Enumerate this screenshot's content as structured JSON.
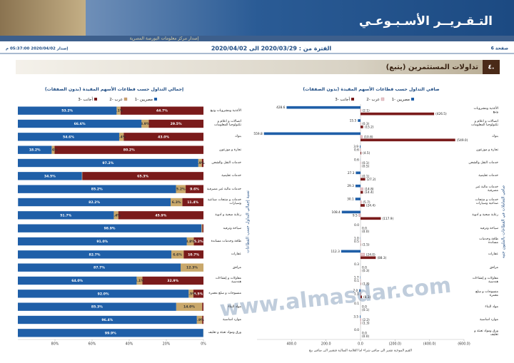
{
  "header": {
    "title": "التـقـريــر الأسـبـوعـي",
    "subtitle": "إصدار مركز معلومات البورصة المصرية",
    "page": "صفحة 6",
    "period": "الفترة من : 2020/03/29 الى 2020/04/02",
    "issued": "إصدار 2020/04/02 05:37:00 م"
  },
  "section": {
    "number": "٤.",
    "title": "تداولات المستثمرين (يتبع)"
  },
  "watermark": "www.almasdar.com",
  "chart_data": [
    {
      "type": "stacked_bar_h",
      "title": "إجمالي التداول حسب قطاعات الأسهم المقيدة (بدون الصفقات)",
      "ylabel": "نسبة إجمالي التداول حسب القطاعات",
      "categories": [
        "الأغذية ومشروبات وتبغ",
        "اتصالات و اعلام و تكنولوجيا المعلومات",
        "بنوك",
        "تجارة و موزعون",
        "خدمات النقل والشحن",
        "خدمات تعليمية",
        "خدمات مالية غير مصرفية",
        "خدمات و منتجات صناعية وسيارات",
        "رعاية صحية و ادوية",
        "سياحة وترفيه",
        "طاقة وخدمات مساندة",
        "عقارات",
        "مرافق",
        "مقاولات و إنشاءات هندسية",
        "منسوجات و سلع معمرة",
        "مواد البناء",
        "موارد اساسية",
        "ورق ومواد تعبئة و تغليف"
      ],
      "series": [
        {
          "name": "مصريين -1",
          "color": "#1f5fa8",
          "values": [
            53.2,
            66.6,
            54.6,
            18.2,
            97.2,
            34.5,
            85.2,
            82.2,
            51.7,
            98.9,
            91.0,
            82.7,
            87.7,
            64.0,
            92.0,
            85.3,
            96.4,
            99.9
          ],
          "value_labels": [
            "53.2%",
            "66.6%",
            "54.6%",
            "18.2%",
            "97.2%",
            "34.5%",
            "85.2%",
            "82.2%",
            "51.7%",
            "98.9%",
            "91.0%",
            "82.7%",
            "87.7%",
            "64.0%",
            "92.0%",
            "85.3%",
            "96.4%",
            "99.9%"
          ]
        },
        {
          "name": "عرب -2",
          "color": "#c9a86b",
          "values": [
            2.1,
            3.9,
            2.4,
            1.6,
            1.9,
            0.2,
            5.2,
            6.3,
            2.4,
            0.5,
            3.8,
            6.6,
            12.3,
            3.1,
            2.5,
            14.0,
            2.9,
            0.1
          ],
          "value_labels": [
            "2.1%",
            "3.9%",
            "2.4%",
            "1.6%",
            "1.9%",
            "0.2%",
            "5.2%",
            "6.3%",
            "2.4%",
            "0.5%",
            "3.8%",
            "6.6%",
            "12.3%",
            "3.1%",
            "2.5%",
            "14.0%",
            "2.9%",
            "0.1%"
          ]
        },
        {
          "name": "أجانب -3",
          "color": "#7a1b1b",
          "values": [
            44.7,
            29.5,
            43.0,
            80.2,
            0.9,
            65.3,
            9.6,
            11.4,
            45.9,
            0.6,
            5.2,
            10.7,
            0.0,
            32.9,
            5.5,
            0.7,
            0.7,
            0.0
          ],
          "value_labels": [
            "44.7%",
            "29.5%",
            "43.0%",
            "80.2%",
            "0.9%",
            "65.3%",
            "9.6%",
            "11.4%",
            "45.9%",
            "0.6%",
            "5.2%",
            "10.7%",
            "0.0%",
            "32.9%",
            "5.5%",
            "0.7%",
            "0.7%",
            "0.0%"
          ]
        }
      ],
      "xlim": [
        100,
        0
      ],
      "xticks": [
        {
          "value": 80,
          "label": "80%"
        },
        {
          "value": 60,
          "label": "60%"
        },
        {
          "value": 40,
          "label": "40%"
        },
        {
          "value": 20,
          "label": "20%"
        },
        {
          "value": 0,
          "label": "0%"
        }
      ]
    },
    {
      "type": "grouped_bar_h",
      "title": "صافي التداول حسب قطاعات الأسهم المقيدة (بدون الصفقات)",
      "ylabel": "صافي التعاملات في القطاعات بالمليون جنيه",
      "note": "القيم الموجبة تشير الي صافي شراء اما العلامة السالبة فتشير الى صافي بيع",
      "categories": [
        "الأغذية ومشروبات وتبغ",
        "اتصالات و اعلام و تكنولوجيا المعلومات",
        "بنوك",
        "تجارة و موزعون",
        "خدمات النقل والشحن",
        "خدمات تعليمية",
        "خدمات مالية غير مصرفية",
        "خدمات و منتجات صناعية وسيارات",
        "رعاية صحية و ادوية",
        "سياحة وترفيه",
        "طاقة وخدمات مساندة",
        "عقارات",
        "مرافق",
        "مقاولات و إنشاءات هندسية",
        "منسوجات و سلع معمرة",
        "مواد البناء",
        "موارد اساسية",
        "ورق ومواد تعبئة و تغليف"
      ],
      "series": [
        {
          "name": "مصريين -1",
          "color": "#1f5fa8",
          "values": [
            428.6,
            15.5,
            559.8,
            3.9,
            0.6,
            27.3,
            29.3,
            30.1,
            108.4,
            0.0,
            1.0,
            112.3,
            0.3,
            1.7,
            7.0,
            0.1,
            3.5,
            0.0
          ],
          "value_labels": [
            "428.6",
            "15.5",
            "559.8",
            "3.9",
            "0.6",
            "27.3",
            "29.3",
            "30.1",
            "108.4",
            "0.0",
            "1.0",
            "112.3",
            "0.3",
            "1.7",
            "7.0",
            "0.1",
            "3.5",
            "0.0"
          ]
        },
        {
          "name": "عرب -2",
          "color": "#e9c9cc",
          "values": [
            -2.1,
            -0.3,
            -10.8,
            0.6,
            -0.1,
            -0.1,
            -14.8,
            -5.7,
            9.5,
            0.0,
            0.5,
            -24.0,
            0.0,
            0.1,
            1.1,
            0.0,
            -2.2,
            0.0
          ],
          "value_labels": [
            "(2.1)",
            "(0.3)",
            "(10.8)",
            "0.6",
            "(0.1)",
            "(0.1)",
            "(14.8)",
            "(5.7)",
            "9.5",
            "0.0",
            "0.5",
            "(24.0)",
            "0.0",
            "0.1",
            "1.1",
            "0.0",
            "(2.2)",
            "0.0"
          ]
        },
        {
          "name": "أجانب -3",
          "color": "#7a1b1b",
          "values": [
            -426.5,
            -15.2,
            -549.0,
            -4.5,
            -0.5,
            -27.2,
            -14.4,
            -24.4,
            -117.9,
            0.0,
            -1.5,
            -88.3,
            -0.3,
            -1.8,
            -8.1,
            -0.1,
            -1.3,
            0.0
          ],
          "value_labels": [
            "(426.5)",
            "(15.2)",
            "(549.0)",
            "(4.5)",
            "(0.5)",
            "(27.2)",
            "(14.4)",
            "(24.4)",
            "(117.9)",
            "(0.0)",
            "(1.5)",
            "(88.3)",
            "(0.3)",
            "(1.8)",
            "(8.1)",
            "(0.1)",
            "(1.3)",
            "(0.0)"
          ]
        }
      ],
      "xlim": [
        600,
        -600
      ],
      "xticks": [
        {
          "value": 400,
          "label": "400.0"
        },
        {
          "value": 200,
          "label": "200.0"
        },
        {
          "value": 0,
          "label": "0.0"
        },
        {
          "value": -200,
          "label": "(200.0)"
        },
        {
          "value": -400,
          "label": "(400.0)"
        },
        {
          "value": -600,
          "label": "(600.0)"
        }
      ]
    }
  ]
}
